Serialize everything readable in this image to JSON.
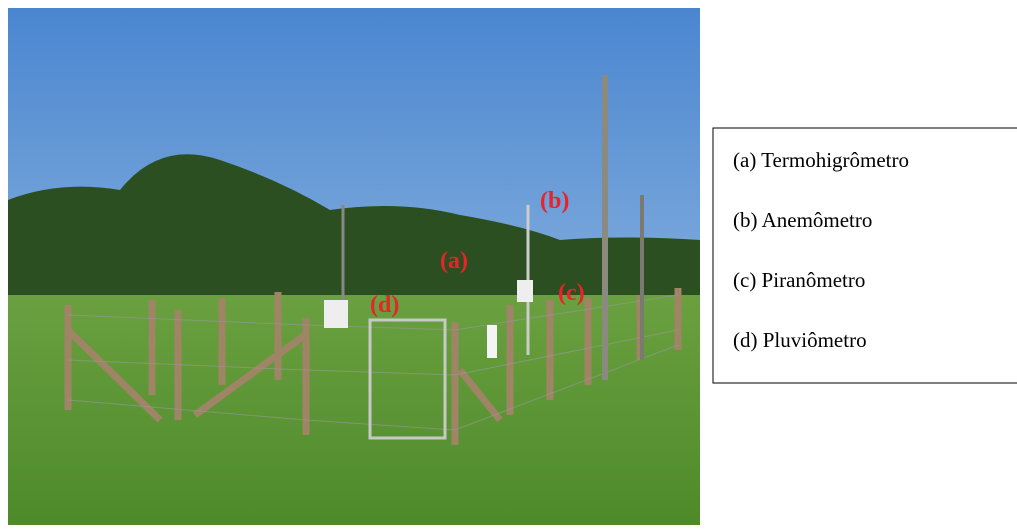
{
  "photo_labels": [
    "(a)",
    "(b)",
    "(c)",
    "(d)"
  ],
  "legend": [
    "(a) Termohigrômetro",
    "(b) Anemômetro",
    "(c) Piranômetro",
    "(d) Pluviômetro"
  ]
}
